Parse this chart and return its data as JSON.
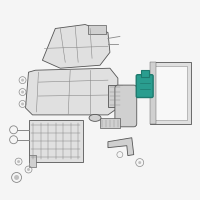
{
  "fig_bg": "#f5f5f5",
  "lc": "#888888",
  "lc_dark": "#555555",
  "fc_light": "#e0e0e0",
  "fc_mid": "#d0d0d0",
  "fc_dark": "#c0c0c0",
  "highlight": "#2a9d8f",
  "highlight_dark": "#1e7a6e",
  "white_bg": "#f8f8f8"
}
